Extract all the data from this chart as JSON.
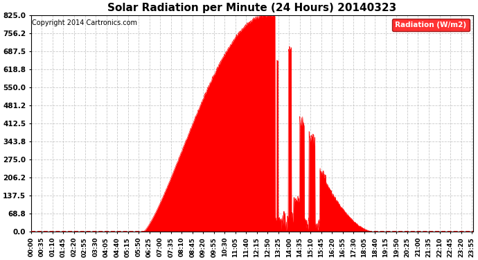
{
  "title": "Solar Radiation per Minute (24 Hours) 20140323",
  "copyright": "Copyright 2014 Cartronics.com",
  "legend_label": "Radiation (W/m2)",
  "ylabel_values": [
    0.0,
    68.8,
    137.5,
    206.2,
    275.0,
    343.8,
    412.5,
    481.2,
    550.0,
    618.8,
    687.5,
    756.2,
    825.0
  ],
  "ylim": [
    0.0,
    825.0
  ],
  "fill_color": "#FF0000",
  "line_color": "#FF0000",
  "background_color": "#FFFFFF",
  "grid_color": "#AAAAAA",
  "dashed_zero_color": "#FF0000",
  "legend_bg": "#FF0000",
  "legend_text_color": "#FFFFFF",
  "title_fontsize": 11,
  "copyright_fontsize": 7,
  "tick_fontsize": 6.5,
  "ytick_fontsize": 7.5,
  "sunrise_min": 365,
  "sunset_min": 1115,
  "solar_noon_min": 770,
  "peak_value": 825.0
}
